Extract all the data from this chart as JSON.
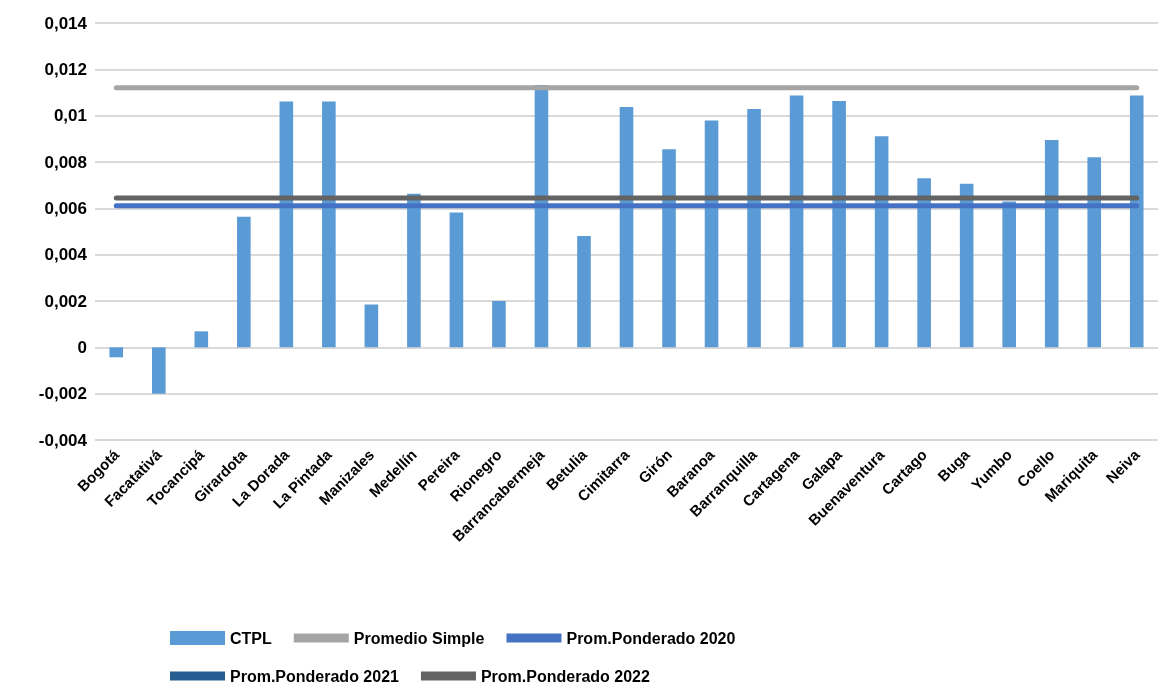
{
  "chart_data": {
    "type": "bar",
    "categories": [
      "Bogotá",
      "Facatativá",
      "Tocancipá",
      "Girardota",
      "La Dorada",
      "La Pintada",
      "Manizales",
      "Medellín",
      "Pereira",
      "Rionegro",
      "Barrancabermeja",
      "Betulia",
      "Cimitarra",
      "Girón",
      "Baranoa",
      "Barranquilla",
      "Cartagena",
      "Galapa",
      "Buenaventura",
      "Cartago",
      "Buga",
      "Yumbo",
      "Coello",
      "Mariquita",
      "Neiva"
    ],
    "series": [
      {
        "name": "CTPL",
        "color": "#5b9bd5",
        "values": [
          -0.00043,
          -0.002,
          0.00069,
          0.00564,
          0.01061,
          0.01061,
          0.00185,
          0.00663,
          0.00582,
          0.002,
          0.01132,
          0.00481,
          0.01037,
          0.00855,
          0.00979,
          0.01029,
          0.01087,
          0.01063,
          0.00911,
          0.0073,
          0.00706,
          0.0063,
          0.00895,
          0.00821,
          0.01087
        ]
      },
      {
        "name": "Promedio Simple",
        "type": "line",
        "color": "#a5a5a5",
        "values": [
          0.01121,
          0.01121,
          0.01121,
          0.01121,
          0.01121,
          0.01121,
          0.01121,
          0.01121,
          0.01121,
          0.01121,
          0.01121,
          0.01121,
          0.01121,
          0.01121,
          0.01121,
          0.01121,
          0.01121,
          0.01121,
          0.01121,
          0.01121,
          0.01121,
          0.01121,
          0.01121,
          0.01121,
          0.01121
        ]
      },
      {
        "name": "Prom.Ponderado 2020",
        "type": "line",
        "color": "#4472c4",
        "values": [
          0.00611,
          0.00611,
          0.00611,
          0.00611,
          0.00611,
          0.00611,
          0.00611,
          0.00611,
          0.00611,
          0.00611,
          0.00611,
          0.00611,
          0.00611,
          0.00611,
          0.00611,
          0.00611,
          0.00611,
          0.00611,
          0.00611,
          0.00611,
          0.00611,
          0.00611,
          0.00611,
          0.00611,
          0.00611
        ]
      },
      {
        "name": "Prom.Ponderado 2021",
        "type": "line",
        "color": "#255e91",
        "values": [
          null,
          null,
          null,
          null,
          null,
          null,
          null,
          null,
          null,
          null,
          null,
          null,
          null,
          null,
          null,
          null,
          null,
          null,
          null,
          null,
          null,
          null,
          null,
          null,
          null
        ]
      },
      {
        "name": "Prom.Ponderado 2022",
        "type": "line",
        "color": "#636363",
        "values": [
          0.00645,
          0.00645,
          0.00645,
          0.00645,
          0.00645,
          0.00645,
          0.00645,
          0.00645,
          0.00645,
          0.00645,
          0.00645,
          0.00645,
          0.00645,
          0.00645,
          0.00645,
          0.00645,
          0.00645,
          0.00645,
          0.00645,
          0.00645,
          0.00645,
          0.00645,
          0.00645,
          0.00645,
          0.00645
        ]
      }
    ],
    "ylim": [
      -0.004,
      0.014
    ],
    "yticks": [
      {
        "value": -0.004,
        "label": "-0,004"
      },
      {
        "value": -0.002,
        "label": "-0,002"
      },
      0,
      {
        "value": 0.002,
        "label": "0,002"
      },
      {
        "value": 0.004,
        "label": "0,004"
      },
      {
        "value": 0.006,
        "label": "0,006"
      },
      {
        "value": 0.008,
        "label": "0,008"
      },
      {
        "value": 0.01,
        "label": "0,01"
      },
      {
        "value": 0.012,
        "label": "0,012"
      },
      {
        "value": 0.014,
        "label": "0,014"
      }
    ],
    "grid": "y",
    "legend": "bottom",
    "marker": "none",
    "line_style": "solid"
  }
}
